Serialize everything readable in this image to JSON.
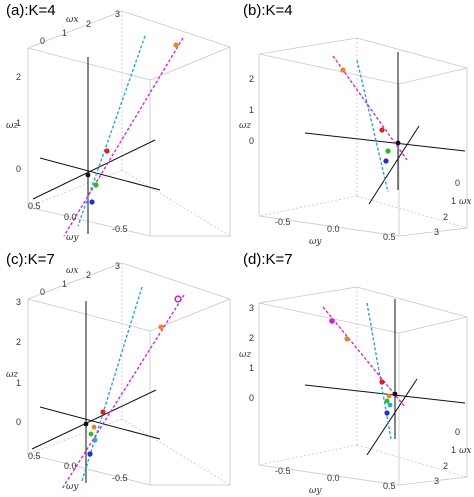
{
  "panels": [
    {
      "title": "(a):K=4",
      "x_ticks": [
        "0",
        "1",
        "2",
        "3"
      ],
      "y_ticks": [
        "0.5",
        "0.0",
        "-0.5"
      ],
      "z_ticks": [
        "0",
        "1",
        "2"
      ],
      "axis_x": "ωx",
      "axis_y": "ωy",
      "axis_z": "ωz"
    },
    {
      "title": "(b):K=4",
      "x_ticks": [
        "0",
        "1",
        "2",
        "3"
      ],
      "y_ticks": [
        "-0.5",
        "0.0",
        "0.5"
      ],
      "z_ticks": [
        "0",
        "1",
        "2"
      ],
      "axis_x": "ωx",
      "axis_y": "ωy",
      "axis_z": "ωz"
    },
    {
      "title": "(c):K=7",
      "x_ticks": [
        "0",
        "1",
        "2",
        "3"
      ],
      "y_ticks": [
        "0.5",
        "0.0",
        "-0.5"
      ],
      "z_ticks": [
        "0",
        "1",
        "2",
        "3"
      ],
      "axis_x": "ωx",
      "axis_y": "ωy",
      "axis_z": "ωz"
    },
    {
      "title": "(d):K=7",
      "x_ticks": [
        "0",
        "1",
        "2",
        "3"
      ],
      "y_ticks": [
        "-0.5",
        "0.0",
        "0.5"
      ],
      "z_ticks": [
        "0",
        "1",
        "2",
        "3"
      ],
      "axis_x": "ωx",
      "axis_y": "ωy",
      "axis_z": "ωz"
    }
  ],
  "colors": {
    "cyan_line": "#2aa6c8",
    "magenta_line": "#d62ad6",
    "point_red": "#e02020",
    "point_green": "#22c022",
    "point_blue": "#2030d0",
    "point_orange": "#e08a20",
    "point_magenta": "#d020d0",
    "point_black": "#111111",
    "box_edge": "#c8c8c8",
    "axis_line": "#111111"
  }
}
